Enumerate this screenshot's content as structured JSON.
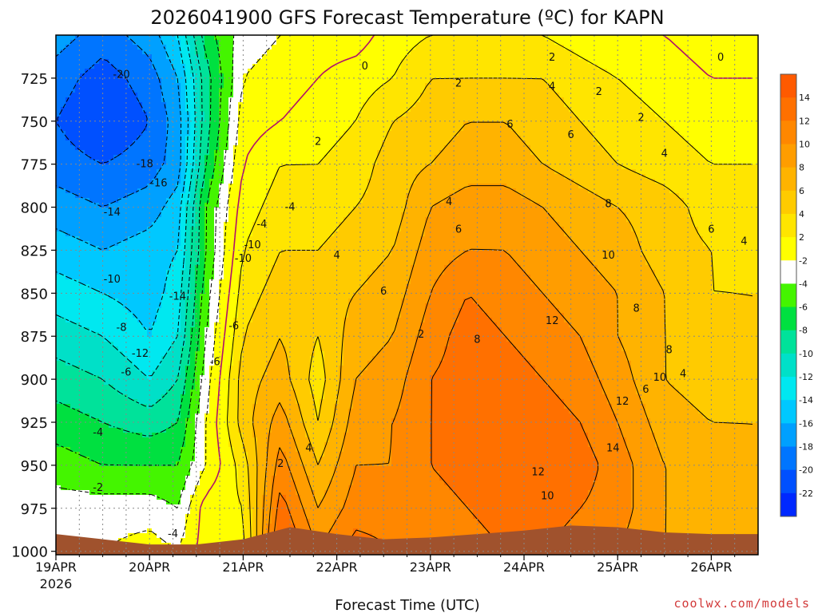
{
  "chart_data": {
    "type": "heatmap",
    "title": "2026041900 GFS Forecast Temperature (ºC) for KAPN",
    "xlabel": "Forecast Time (UTC)",
    "ylabel": "",
    "x_ticks": [
      "19APR",
      "20APR",
      "21APR",
      "22APR",
      "23APR",
      "24APR",
      "25APR",
      "26APR"
    ],
    "x_year": "2026",
    "x_range_days": [
      0,
      7.5
    ],
    "y_ticks": [
      725,
      750,
      775,
      800,
      825,
      850,
      875,
      900,
      925,
      950,
      975,
      1000
    ],
    "y_range_hpa": [
      700,
      1002
    ],
    "y_inverted": true,
    "grid": true,
    "colorbar": {
      "position": "right",
      "labels": [
        "14",
        "12",
        "10",
        "8",
        "6",
        "4",
        "2",
        "-2",
        "-4",
        "-6",
        "-8",
        "-10",
        "-12",
        "-14",
        "-16",
        "-18",
        "-20",
        "-22"
      ],
      "colors": [
        "#ff5a00",
        "#ff7000",
        "#ff8700",
        "#ff9d00",
        "#ffb300",
        "#ffcb00",
        "#ffe500",
        "#ffff00",
        "#ffffff",
        "#44f500",
        "#00e040",
        "#00e29a",
        "#00e0c8",
        "#00e8f0",
        "#00c8ff",
        "#00a0ff",
        "#0075ff",
        "#0050ff",
        "#0028ff"
      ]
    },
    "ground_color": "#a0522d",
    "contour_labels": [
      "-20",
      "-18",
      "-16",
      "-14",
      "-14",
      "-10",
      "-10",
      "-8",
      "-12",
      "-6",
      "-6",
      "-4",
      "-4",
      "-2",
      "-4",
      "-4",
      "-6",
      "-10",
      "0",
      "0",
      "2",
      "2",
      "2",
      "2",
      "2",
      "2",
      "2",
      "4",
      "4",
      "4",
      "4",
      "4",
      "4",
      "4",
      "6",
      "6",
      "6",
      "6",
      "6",
      "6",
      "8",
      "8",
      "8",
      "8",
      "10",
      "10",
      "10",
      "12",
      "12",
      "12",
      "14"
    ],
    "profile_days": [
      0.0,
      0.5,
      1.0,
      1.3,
      1.6,
      2.0,
      2.4,
      2.8,
      3.2,
      3.6,
      4.0,
      4.4,
      4.8,
      5.2,
      5.6,
      6.0,
      6.5,
      7.0,
      7.5
    ],
    "profile_levels_hpa": [
      700,
      725,
      750,
      775,
      800,
      825,
      850,
      875,
      900,
      925,
      950,
      975,
      1000
    ],
    "temperature_c": [
      [
        -17,
        -19,
        -20,
        -19,
        -17,
        -15,
        -13,
        -11,
        -9,
        -7,
        -5,
        -3,
        -2
      ],
      [
        -19,
        -21,
        -22,
        -20,
        -18,
        -16,
        -14,
        -12,
        -10,
        -8,
        -6,
        -3,
        -2
      ],
      [
        -17,
        -19,
        -20,
        -19,
        -17,
        -15,
        -15,
        -14,
        -12,
        -9,
        -6,
        -3,
        -1
      ],
      [
        -14,
        -16,
        -17,
        -17,
        -15,
        -14,
        -13,
        -12,
        -10,
        -8,
        -6,
        -4,
        -2
      ],
      [
        -7,
        -9,
        -9,
        -8,
        -6,
        -6,
        -5,
        -4,
        -3,
        -2,
        -2,
        1,
        1
      ],
      [
        -3,
        -2,
        -1,
        0,
        1,
        2,
        3,
        4,
        5,
        5,
        3,
        2,
        1
      ],
      [
        -2,
        -1,
        0,
        2,
        3,
        4,
        5,
        6,
        7,
        9,
        11,
        13,
        15
      ],
      [
        -1,
        0,
        1,
        2,
        3,
        4,
        5,
        4,
        3,
        4,
        6,
        8,
        10
      ],
      [
        -1,
        1,
        2,
        3,
        4,
        5,
        6,
        7,
        8,
        9,
        10,
        11,
        13
      ],
      [
        1,
        2,
        4,
        5,
        5,
        6,
        7,
        8,
        9,
        10,
        10,
        11,
        12
      ],
      [
        2,
        4,
        5,
        6,
        8,
        9,
        10,
        11,
        12,
        12,
        12,
        11,
        11
      ],
      [
        2,
        4,
        6,
        7,
        9,
        10,
        12,
        13,
        13,
        13,
        13,
        12,
        11
      ],
      [
        2,
        4,
        6,
        7,
        9,
        10,
        11,
        12,
        13,
        14,
        14,
        13,
        12
      ],
      [
        2,
        4,
        5,
        6,
        8,
        9,
        10,
        11,
        12,
        13,
        14,
        13,
        12
      ],
      [
        1,
        3,
        4,
        5,
        7,
        8,
        9,
        10,
        11,
        12,
        13,
        12,
        11
      ],
      [
        0,
        2,
        3,
        4,
        6,
        7,
        8,
        8,
        9,
        10,
        11,
        11,
        10
      ],
      [
        0,
        1,
        2,
        3,
        5,
        5,
        6,
        6,
        6,
        7,
        8,
        8,
        8
      ],
      [
        -1,
        0,
        1,
        2,
        3,
        4,
        4,
        5,
        5,
        6,
        7,
        7,
        7
      ],
      [
        -1,
        0,
        1,
        2,
        3,
        3,
        4,
        4,
        5,
        6,
        6,
        6,
        6
      ]
    ]
  },
  "credit": "coolwx.com/models"
}
